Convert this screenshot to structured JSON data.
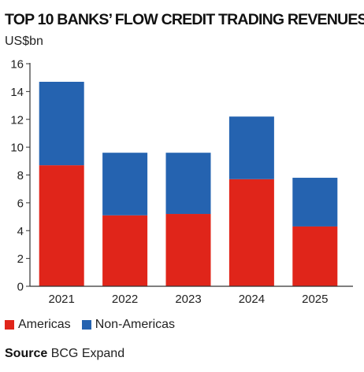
{
  "title": "TOP 10 BANKS’ FLOW CREDIT TRADING REVENUES",
  "unit": "US$bn",
  "source_label": "Source",
  "source_text": "BCG Expand",
  "colors": {
    "americas": "#e0251a",
    "non_americas": "#2563b0",
    "axis": "#333333",
    "text": "#222222"
  },
  "chart_data": {
    "type": "bar",
    "stacked": true,
    "title": "TOP 10 BANKS’ FLOW CREDIT TRADING REVENUES",
    "ylabel": "US$bn",
    "xlabel": "",
    "categories": [
      "2021",
      "2022",
      "2023",
      "2024",
      "2025"
    ],
    "ylim": [
      0,
      16
    ],
    "yticks": [
      0,
      2,
      4,
      6,
      8,
      10,
      12,
      14,
      16
    ],
    "grid": false,
    "legend_position": "bottom-left",
    "series": [
      {
        "name": "Americas",
        "values": [
          8.7,
          5.1,
          5.2,
          7.7,
          4.3
        ],
        "color": "#e0251a"
      },
      {
        "name": "Non-Americas",
        "values": [
          6.0,
          4.5,
          4.4,
          4.5,
          3.5
        ],
        "color": "#2563b0"
      }
    ]
  }
}
